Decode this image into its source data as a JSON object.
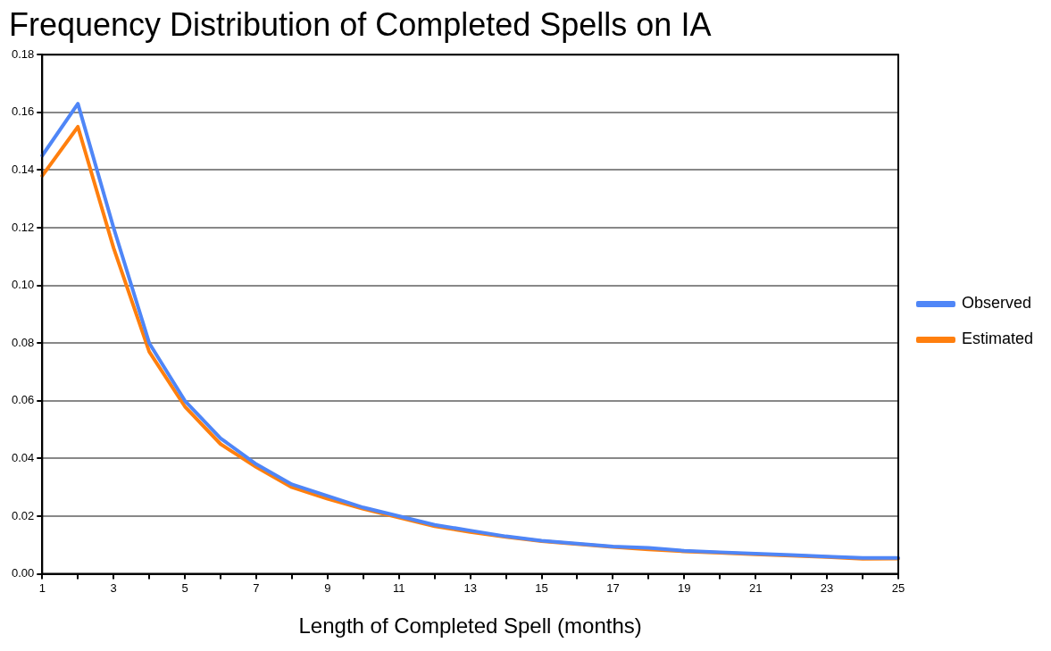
{
  "chart_data": {
    "type": "line",
    "title": "Frequency Distribution of Completed Spells on IA",
    "xlabel": "Length of Completed Spell (months)",
    "x": [
      1,
      2,
      3,
      4,
      5,
      6,
      7,
      8,
      9,
      10,
      11,
      12,
      13,
      14,
      15,
      16,
      17,
      18,
      19,
      20,
      21,
      22,
      23,
      24,
      25
    ],
    "series": [
      {
        "name": "Observed",
        "color": "#4f86f7",
        "values": [
          0.145,
          0.163,
          0.12,
          0.08,
          0.06,
          0.047,
          0.038,
          0.031,
          0.027,
          0.023,
          0.02,
          0.017,
          0.015,
          0.013,
          0.0115,
          0.0105,
          0.0095,
          0.009,
          0.008,
          0.0075,
          0.007,
          0.0065,
          0.006,
          0.0055,
          0.0055
        ]
      },
      {
        "name": "Estimated",
        "color": "#ff7f0e",
        "values": [
          0.138,
          0.155,
          0.113,
          0.077,
          0.058,
          0.045,
          0.037,
          0.03,
          0.026,
          0.0225,
          0.0195,
          0.0165,
          0.0145,
          0.0128,
          0.0113,
          0.0103,
          0.0093,
          0.0085,
          0.0078,
          0.0073,
          0.0068,
          0.0063,
          0.0058,
          0.0052,
          0.0053
        ]
      }
    ],
    "xlim": [
      1,
      25
    ],
    "xticks": [
      1,
      {
        "value": 2,
        "label": null
      },
      3,
      {
        "value": 4,
        "label": null
      },
      5,
      {
        "value": 6,
        "label": null
      },
      7,
      {
        "value": 8,
        "label": null
      },
      9,
      {
        "value": 10,
        "label": null
      },
      11,
      {
        "value": 12,
        "label": null
      },
      13,
      {
        "value": 14,
        "label": null
      },
      15,
      {
        "value": 16,
        "label": null
      },
      17,
      {
        "value": 18,
        "label": null
      },
      19,
      {
        "value": 20,
        "label": null
      },
      21,
      {
        "value": 22,
        "label": null
      },
      23,
      {
        "value": 24,
        "label": null
      },
      25
    ],
    "ylim": [
      0,
      0.18
    ],
    "yticks": [
      {
        "value": 0,
        "label": "0.00"
      },
      {
        "value": 0.02,
        "label": "0.02"
      },
      {
        "value": 0.04,
        "label": "0.04"
      },
      {
        "value": 0.06,
        "label": "0.06"
      },
      {
        "value": 0.08,
        "label": "0.08"
      },
      {
        "value": 0.1,
        "label": "0.10"
      },
      {
        "value": 0.12,
        "label": "0.12"
      },
      {
        "value": 0.14,
        "label": "0.14"
      },
      {
        "value": 0.16,
        "label": "0.16"
      },
      {
        "value": 0.18,
        "label": "0.18"
      }
    ],
    "grid": "y",
    "legend": "right",
    "marker": "none",
    "line_style": "solid"
  }
}
